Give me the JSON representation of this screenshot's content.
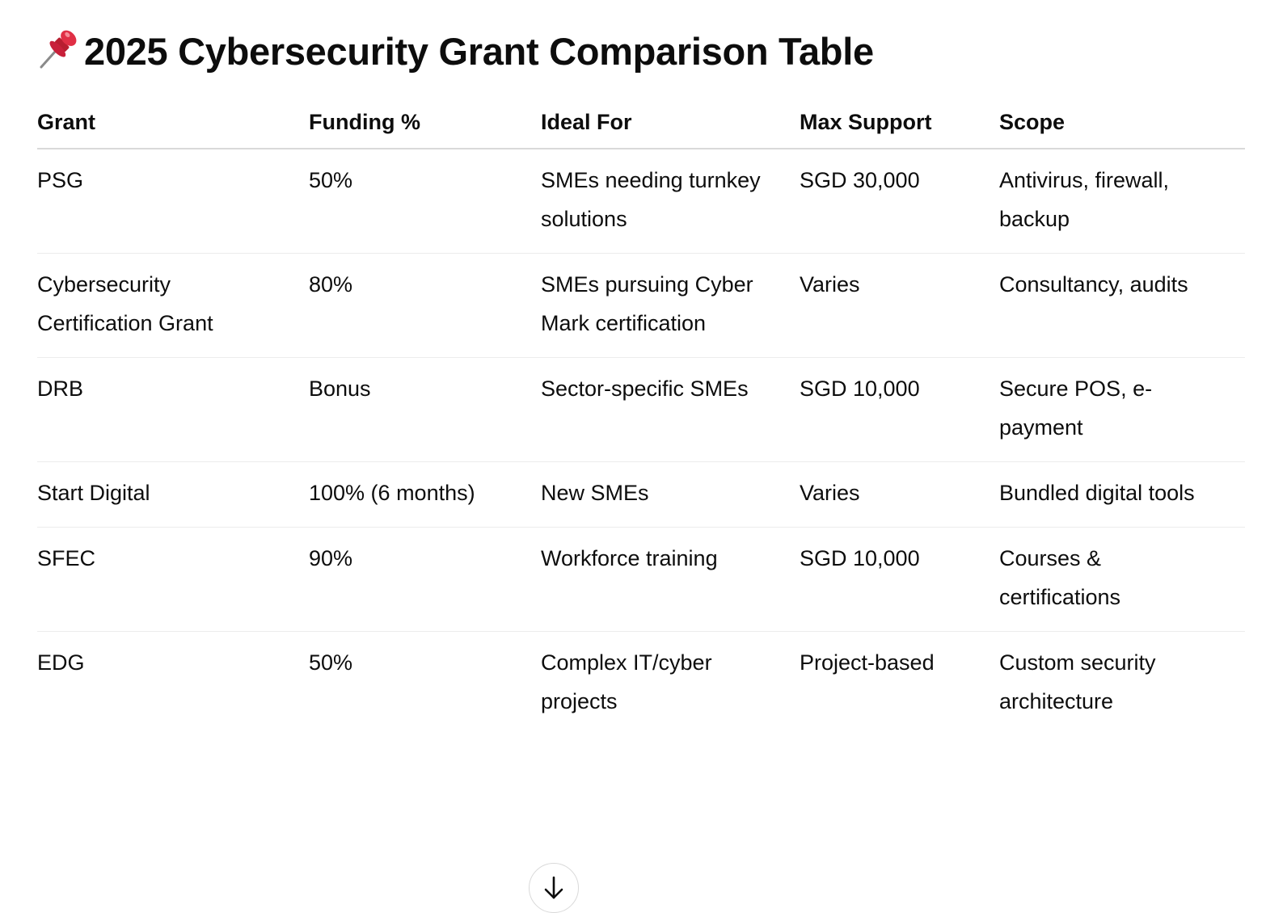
{
  "header": {
    "icon": "pushpin-icon",
    "title": "2025 Cybersecurity Grant Comparison Table"
  },
  "table": {
    "columns": [
      "Grant",
      "Funding %",
      "Ideal For",
      "Max Support",
      "Scope"
    ],
    "rows": [
      [
        "PSG",
        "50%",
        "SMEs needing turnkey solutions",
        "SGD 30,000",
        "Antivirus, firewall, backup"
      ],
      [
        "Cybersecurity Certification Grant",
        "80%",
        "SMEs pursuing Cyber Mark certification",
        "Varies",
        "Consultancy, audits"
      ],
      [
        "DRB",
        "Bonus",
        "Sector-specific SMEs",
        "SGD 10,000",
        "Secure POS, e-payment"
      ],
      [
        "Start Digital",
        "100% (6 months)",
        "New SMEs",
        "Varies",
        "Bundled digital tools"
      ],
      [
        "SFEC",
        "90%",
        "Workforce training",
        "SGD 10,000",
        "Courses & certifications"
      ],
      [
        "EDG",
        "50%",
        "Complex IT/cyber projects",
        "Project-based",
        "Custom security architecture"
      ]
    ]
  },
  "controls": {
    "scroll_icon": "arrow-down-icon"
  },
  "colors": {
    "text": "#0d0d0d",
    "header_rule": "#d9d9d9",
    "row_rule": "#ececec",
    "pin_head": "#d7263d"
  }
}
